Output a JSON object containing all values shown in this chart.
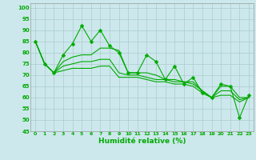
{
  "xlabel": "Humidité relative (%)",
  "xlim": [
    -0.5,
    23.5
  ],
  "ylim": [
    45,
    102
  ],
  "yticks": [
    45,
    50,
    55,
    60,
    65,
    70,
    75,
    80,
    85,
    90,
    95,
    100
  ],
  "xticks": [
    0,
    1,
    2,
    3,
    4,
    5,
    6,
    7,
    8,
    9,
    10,
    11,
    12,
    13,
    14,
    15,
    16,
    17,
    18,
    19,
    20,
    21,
    22,
    23
  ],
  "background_color": "#cce8ec",
  "grid_color": "#aacccc",
  "line_color": "#00aa00",
  "series_jagged": [
    [
      85,
      75,
      71,
      79,
      84,
      92,
      85,
      90,
      83,
      80,
      71,
      71,
      79,
      76,
      68,
      74,
      66,
      69,
      62,
      60,
      66,
      65,
      51,
      61
    ]
  ],
  "series_smooth": [
    [
      85,
      75,
      71,
      76,
      78,
      79,
      79,
      82,
      82,
      81,
      71,
      71,
      71,
      70,
      68,
      68,
      67,
      67,
      63,
      60,
      65,
      65,
      60,
      60
    ],
    [
      85,
      75,
      71,
      74,
      75,
      76,
      76,
      77,
      77,
      71,
      70,
      70,
      69,
      68,
      68,
      67,
      67,
      66,
      63,
      60,
      63,
      63,
      59,
      60
    ],
    [
      85,
      75,
      71,
      72,
      73,
      73,
      73,
      74,
      74,
      69,
      69,
      69,
      68,
      67,
      67,
      66,
      66,
      65,
      62,
      60,
      61,
      61,
      58,
      60
    ]
  ]
}
